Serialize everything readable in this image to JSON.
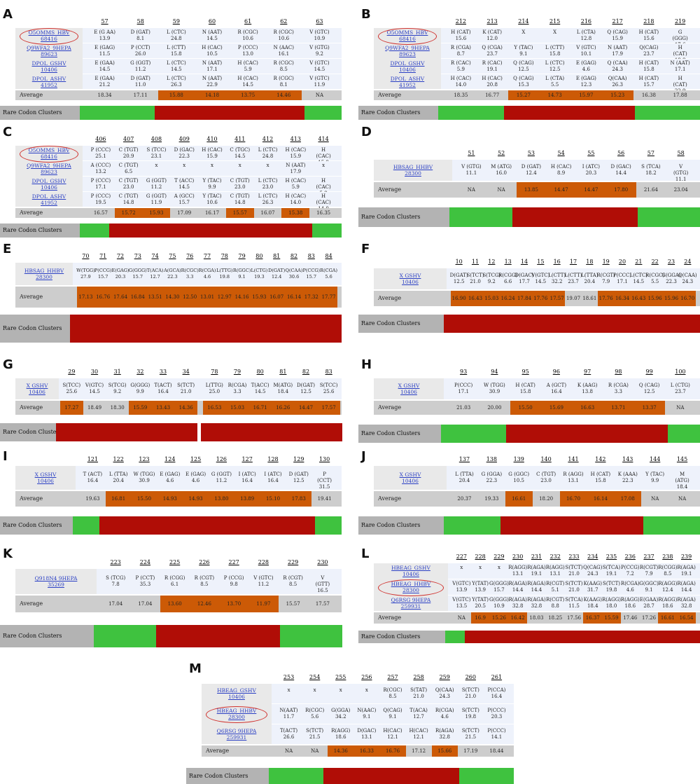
{
  "colors": {
    "green": "#3fc23f",
    "red": "#b00d06",
    "orange": "#cc5a06",
    "avg_grey": "#cdcdcd",
    "label_grey": "#b3b3b3",
    "band": "#eef2fb"
  },
  "avg_label": "Average",
  "clusters_label": "Rare Codon Clusters",
  "panels": [
    {
      "id": "A",
      "label": "A",
      "names": [
        "O5OMMS_HBV\n68416",
        "Q9WFA2_9HEPA\n89623",
        "DPOL_GSHV\n10406",
        "DPOL_ASHV\n41952"
      ],
      "circled": [
        0
      ],
      "positions": [
        "57",
        "58",
        "59",
        "60",
        "61",
        "62",
        "63"
      ],
      "rows": [
        [
          "E (G AA)\n13.9",
          "D (GAT)\n8.1",
          "L (CTC)\n24.8",
          "N (AAT)\n14.5",
          "R (CGC)\n10.6",
          "R (CGC)\n10.6",
          "V (GTC)\n10.9"
        ],
        [
          "E (GAG)\n11.5",
          "P (CCT)\n26.0",
          "L (CTT)\n15.8",
          "H (CAC)\n10.5",
          "P (CCC)\n13.0",
          "N (AAC)\n16.1",
          "V (GTG)\n9.2"
        ],
        [
          "E (GAA)\n14.5",
          "G (GGT)\n11.2",
          "L (CTC)\n14.5",
          "N (AAT)\n17.1",
          "H (CAC)\n5.9",
          "R (CGC)\n8.5",
          "V (GTC)\n14.5"
        ],
        [
          "E (GAA)\n21.2",
          "D (GAT)\n11.0",
          "L (CTC)\n26.3",
          "N (AAT)\n22.9",
          "H (CAC)\n14.5",
          "R (CGC)\n8.1",
          "V (GTC)\n11.9"
        ]
      ],
      "avg": [
        "18.34",
        "17.11",
        "15.88",
        "14.18",
        "13.75",
        "14.46",
        "NA"
      ],
      "hl": [
        2,
        3,
        4,
        5
      ],
      "clusters": [
        "g",
        "g",
        "r",
        "r",
        "r",
        "r",
        "g"
      ]
    },
    {
      "id": "B",
      "label": "B",
      "names": [
        "O5OMMS_HBV\n68416",
        "Q9WFA2_9HEPA\n89623",
        "DPOL_GSHV\n10406",
        "DPOL_ASHV\n41952"
      ],
      "circled": [
        0
      ],
      "positions": [
        "212",
        "213",
        "214",
        "215",
        "216",
        "217",
        "218",
        "219"
      ],
      "rows": [
        [
          "H (CAT)\n15.6",
          "K (CAT)\n12.0",
          "X",
          "X",
          "L (CTA)\n12.8",
          "Q (CAG)\n15.9",
          "H (CAT)\n15.6",
          "G (GGG)\n17.6"
        ],
        [
          "R (CGA)\n8.7",
          "Q (CGA)\n23.7",
          "Y (TAC)\n9.1",
          "L (CTT)\n15.8",
          "V (GTC)\n10.1",
          "N (AAT)\n17.9",
          "Q(CAG)\n23.7",
          "H (CAT)\n18.8"
        ],
        [
          "R (CAC)\n5.9",
          "R (CAC)\n19.1",
          "Q (CAG)\n12.5",
          "L (CTC)\n12.5",
          "E (GAG)\n4.6",
          "Q (CAA)\n24.3",
          "H (CAT)\n15.8",
          "N (AAT)\n17.1"
        ],
        [
          "H (CAC)\n14.0",
          "H (CAC)\n20.8",
          "Q (CAG)\n15.3",
          "L (CTA)\n5.5",
          "E (GAG)\n12.3",
          "Q(CAA)\n26.3",
          "H (CAT)\n15.7",
          "H (CAT)\n22.9"
        ]
      ],
      "avg": [
        "18.35",
        "16.77",
        "15.27",
        "14.73",
        "15.97",
        "15.23",
        "16.38",
        "17.88"
      ],
      "hl": [
        2,
        3,
        4,
        5
      ],
      "clusters": [
        "g",
        "g",
        "r",
        "r",
        "r",
        "r",
        "g",
        "g"
      ]
    },
    {
      "id": "C",
      "label": "C",
      "names": [
        "O5OMMS_HBV\n68416",
        "Q9WFA2_9HEPA\n89623",
        "DPOL_GSHV\n10406",
        "DPOL_ASHV\n41952"
      ],
      "circled": [
        0
      ],
      "positions": [
        "406",
        "407",
        "408",
        "409",
        "410",
        "411",
        "412",
        "413",
        "414"
      ],
      "rows": [
        [
          "P (CCC)\n25.1",
          "C (TGT)\n20.9",
          "S (TCC)\n23.1",
          "D (GAC)\n22.3",
          "H (CAC)\n15.9",
          "C (TGC)\n14.5",
          "L (CTC)\n24.8",
          "H (CAC)\n15.9",
          "H (CAC)\n15.9"
        ],
        [
          "A (CCC)\n13.2",
          "C (TGT)\n6.5",
          "x",
          "x",
          "x",
          "x",
          "x",
          "N (AAT)\n17.9",
          "x"
        ],
        [
          "P (CCC)\n17.1",
          "C (TGT)\n23.0",
          "G (GGT)\n11.2",
          "T (ACC)\n14.5",
          "Y (TAC)\n9.9",
          "C (TGT)\n23.0",
          "L (CTC)\n23.0",
          "H (CAC)\n5.9",
          "H (CAC)\n5.9"
        ],
        [
          "P (CCC)\n19.5",
          "C (TGT)\n14.8",
          "G (GGT)\n11.9",
          "A (GCC)\n15.7",
          "Y (TAC)\n10.6",
          "C (TGT)\n14.8",
          "L (CTC)\n26.3",
          "H (CAC)\n14.0",
          "H (CAC)\n14.0"
        ]
      ],
      "avg": [
        "16.57",
        "15.72",
        "15.93",
        "17.09",
        "16.17",
        "15.57",
        "16.07",
        "15.38",
        "16.35"
      ],
      "hl": [
        1,
        2,
        5,
        7
      ],
      "clusters": [
        "g",
        "r",
        "r",
        "r",
        "r",
        "r",
        "r",
        "r",
        "g"
      ]
    },
    {
      "id": "D",
      "label": "D",
      "names": [
        "HBSAG_HHBV\n28300"
      ],
      "circled": [],
      "positions": [
        "51",
        "52",
        "53",
        "54",
        "55",
        "56",
        "57",
        "58"
      ],
      "rows": [
        [
          "V (GTG)\n11.1",
          "M (ATG)\n16.0",
          "D (GAT)\n12.4",
          "H (CAC)\n8.9",
          "I (ATC)\n20.3",
          "D (GAC)\n14.4",
          "S (TCA)\n18.2",
          "V (GTG)\n11.1"
        ]
      ],
      "avg": [
        "NA",
        "NA",
        "13.85",
        "14.47",
        "14.47",
        "17.80",
        "21.64",
        "23.04"
      ],
      "hl": [
        2,
        3,
        4,
        5
      ],
      "clusters": [
        "g",
        "g",
        "r",
        "r",
        "r",
        "r",
        "g",
        "g"
      ]
    },
    {
      "id": "E",
      "label": "E",
      "names": [
        "HBSAG_HHBV\n28300"
      ],
      "circled": [],
      "positions": [
        "70",
        "71",
        "72",
        "73",
        "74",
        "75",
        "76",
        "77",
        "78",
        "79",
        "80",
        "81",
        "82",
        "83",
        "84"
      ],
      "rows": [
        [
          "W(TGG)\n27.9",
          "P(CCG)\n15.7",
          "E(GAG)\n20.3",
          "G(GGG)\n15.7",
          "T(ACA)\n12.7",
          "A(GCA)\n22.3",
          "R(CGC)\n3.3",
          "R(CGA)\n4.6",
          "L(TTG)\n19.8",
          "R(GGC)\n9.1",
          "L(CTG)\n19.3",
          "D(GAT)\n12.4",
          "Q(CAA)\n30.6",
          "P(CCG)\n15.7",
          "R(CGA)\n5.6"
        ]
      ],
      "avg": [
        "17.13",
        "16.76",
        "17.64",
        "16.84",
        "13.51",
        "14.30",
        "12.50",
        "13.01",
        "12.97",
        "14.16",
        "15.93",
        "16.07",
        "16.14",
        "17.32",
        "17.77"
      ],
      "hl": [
        0,
        1,
        2,
        3,
        4,
        5,
        6,
        7,
        8,
        9,
        10,
        11,
        12,
        13,
        14
      ],
      "clusters": [
        "r",
        "r",
        "r",
        "r",
        "r",
        "r",
        "r",
        "r",
        "r",
        "r",
        "r",
        "r",
        "r",
        "r",
        "r"
      ]
    },
    {
      "id": "F",
      "label": "F",
      "names": [
        "X GSHV\n10406"
      ],
      "circled": [],
      "positions": [
        "10",
        "11",
        "12",
        "13",
        "14",
        "15",
        "16",
        "17",
        "18",
        "19",
        "20",
        "21",
        "22",
        "23",
        "24"
      ],
      "rows": [
        [
          "D(GAT)\n12.5",
          "S(TCT)\n21.0",
          "S(TCG)\n9.2",
          "R(CGG)\n6.6",
          "D(GAC)\n17.7",
          "V(GTC)\n14.5",
          "L(CTT)\n32.2",
          "L(CTT)\n23.7",
          "L(TTA)\n20.4",
          "R(CGT)\n7.9",
          "P(CCC)\n17.1",
          "L(CTC)\n14.5",
          "R(CGC)\n5.5",
          "G(GGA)\n22.3",
          "Q(CAA)\n24.3"
        ]
      ],
      "avg": [
        "16.90",
        "16.43",
        "15.03",
        "16.24",
        "17.84",
        "17.76",
        "17.57",
        "19.07",
        "18.61",
        "17.76",
        "16.34",
        "16.43",
        "15.96",
        "15.96",
        "16.70"
      ],
      "hl": [
        0,
        1,
        2,
        3,
        4,
        5,
        6,
        9,
        10,
        11,
        12,
        13,
        14
      ],
      "clusters": [
        "r",
        "r",
        "r",
        "r",
        "r",
        "r",
        "r",
        "r",
        "r",
        "r",
        "r",
        "r",
        "r",
        "r",
        "r"
      ]
    },
    {
      "id": "G",
      "label": "G",
      "names": [
        "X GSHV\n10406"
      ],
      "circled": [],
      "split": 6,
      "positions": [
        "29",
        "30",
        "31",
        "32",
        "33",
        "34",
        "78",
        "79",
        "80",
        "81",
        "82",
        "83"
      ],
      "rows": [
        [
          "S(TCC)\n25.6",
          "V(GTC)\n14.5",
          "S(TCG)\n9.2",
          "G(GGG)\n9.9",
          "T(ACT)\n16.4",
          "S(TCT)\n21.0",
          "L(TTG)\n25.0",
          "R(CGA)\n3.3",
          "T(ACC)\n14.5",
          "M(ATG)\n18.4",
          "D(GAT)\n12.5",
          "S(TCC)\n25.6"
        ]
      ],
      "avg": [
        "17.27",
        "18.49",
        "18.30",
        "15.59",
        "13.43",
        "14.36",
        "16.53",
        "15.03",
        "16.71",
        "16.26",
        "14.47",
        "17.57"
      ],
      "hl": [
        0,
        3,
        4,
        5,
        6,
        7,
        8,
        9,
        10,
        11
      ],
      "clusters": [
        "r",
        "r",
        "r",
        "r",
        "r",
        "r",
        "r",
        "r",
        "r",
        "r",
        "r",
        "r"
      ]
    },
    {
      "id": "H",
      "label": "H",
      "names": [
        "X GSHV\n10406"
      ],
      "circled": [],
      "positions": [
        "93",
        "94",
        "95",
        "96",
        "97",
        "98",
        "99",
        "100"
      ],
      "rows": [
        [
          "P(CCC)\n17.1",
          "W (TGG)\n30.9",
          "H (CAT)\n15.8",
          "A (GCT)\n16.4",
          "K (AAG)\n13.8",
          "R (CGA)\n3.3",
          "Q (CAG)\n12.5",
          "L (CTG)\n23.7"
        ]
      ],
      "avg": [
        "21.03",
        "20.00",
        "15.50",
        "15.69",
        "16.63",
        "13.71",
        "13.37",
        "NA"
      ],
      "hl": [
        2,
        3,
        4,
        5,
        6
      ],
      "clusters": [
        "g",
        "g",
        "r",
        "r",
        "r",
        "r",
        "r",
        "g"
      ]
    },
    {
      "id": "I",
      "label": "I",
      "names": [
        "X GSHV\n10406"
      ],
      "circled": [],
      "positions": [
        "121",
        "122",
        "123",
        "124",
        "125",
        "126",
        "127",
        "128",
        "129",
        "130"
      ],
      "rows": [
        [
          "T (ACT)\n16.4",
          "L (TTA)\n20.4",
          "W (TGG)\n30.9",
          "E (GAG)\n4.6",
          "E (GAG)\n4.6",
          "G (GGT)\n11.2",
          "I (ATC)\n16.4",
          "I (ATC)\n16.4",
          "D (GAT)\n12.5",
          "P (CCT)\n31.5"
        ]
      ],
      "avg": [
        "19.63",
        "16.81",
        "15.50",
        "14.93",
        "14.93",
        "13.80",
        "13.89",
        "15.10",
        "17.83",
        "19.41"
      ],
      "hl": [
        1,
        2,
        3,
        4,
        5,
        6,
        7,
        8
      ],
      "clusters": [
        "g",
        "r",
        "r",
        "r",
        "r",
        "r",
        "r",
        "r",
        "r",
        "g"
      ]
    },
    {
      "id": "J",
      "label": "J",
      "names": [
        "X GSHV\n10406"
      ],
      "circled": [],
      "positions": [
        "137",
        "138",
        "139",
        "140",
        "141",
        "142",
        "143",
        "144",
        "145"
      ],
      "rows": [
        [
          "L (TTA)\n20.4",
          "G (GGA)\n22.3",
          "G (GGC)\n10.5",
          "C (TGT)\n23.0",
          "R (AGG)\n13.1",
          "H (CAT)\n15.8",
          "K (AAA)\n22.3",
          "Y (TAC)\n9.9",
          "M (ATG)\n18.4"
        ]
      ],
      "avg": [
        "20.37",
        "19.33",
        "16.61",
        "18.20",
        "16.70",
        "16.14",
        "17.08",
        "NA",
        "NA"
      ],
      "hl": [
        2,
        4,
        5,
        6
      ],
      "clusters": [
        "g",
        "g",
        "r",
        "r",
        "r",
        "r",
        "r",
        "g",
        "g"
      ]
    },
    {
      "id": "K",
      "label": "K",
      "names": [
        "Q918N4 9HEPA\n35269"
      ],
      "circled": [],
      "positions": [
        "223",
        "224",
        "225",
        "226",
        "227",
        "228",
        "229",
        "230"
      ],
      "rows": [
        [
          "S (TCG)\n7.8",
          "P (CCT)\n35.3",
          "R (CGG)\n6.1",
          "R (CGT)\n8.5",
          "P (CCG)\n9.8",
          "V (GTC)\n11.2",
          "R (CGT)\n8.5",
          "V (GTT)\n16.5"
        ]
      ],
      "avg": [
        "17.04",
        "17.04",
        "13.60",
        "12.46",
        "13.70",
        "11.97",
        "15.57",
        "17.57"
      ],
      "hl": [
        2,
        3,
        4,
        5
      ],
      "clusters": [
        "g",
        "g",
        "r",
        "r",
        "r",
        "r",
        "g",
        "g"
      ]
    },
    {
      "id": "L",
      "label": "L",
      "names": [
        "HBEAG_GSHV\n10406",
        "HBEAG_HHBV\n28300",
        "Q6RSG 9HEPA\n259931"
      ],
      "circled": [
        1
      ],
      "positions": [
        "227",
        "228",
        "229",
        "230",
        "231",
        "232",
        "233",
        "234",
        "235",
        "236",
        "237",
        "238",
        "239"
      ],
      "rows": [
        [
          "x",
          "x",
          "x",
          "R(AGG)\n13.1",
          "R(AGA)\n19.1",
          "R(AGG)\n13.1",
          "S(TCT)\n21.0",
          "Q(CAG)\n24.3",
          "S(TCA)\n19.1",
          "P(CCG)\n7.2",
          "R(CGT)\n7.9",
          "R(CGG)\n8.5",
          "R(AGA)\n19.1"
        ],
        [
          "V(GTC)\n13.9",
          "Y(TAT)\n13.9",
          "G(GGG)\n15.7",
          "R(AGA)\n14.4",
          "R(AGA)\n14.4",
          "R(CGT)\n5.1",
          "S(TCT)\n21.0",
          "K(AAG)\n31.7",
          "S(TCT)\n19.8",
          "R(CGA)\n4.6",
          "G(GGC)\n9.1",
          "R(AGG)\n12.4",
          "R(AGA)\n14.4"
        ],
        [
          "V(GTC)\n13.5",
          "Y(TAT)\n20.5",
          "G(GGG)\n10.9",
          "R(AGA)\n32.8",
          "R(AGA)\n32.8",
          "R(CGT)\n8.8",
          "S(TCA)\n11.5",
          "K(AAG)\n18.4",
          "R(AGG)\n18.0",
          "R(AGG)\n18.6",
          "E(GAA)\n28.7",
          "R(AGG)\n18.6",
          "R(AGA)\n32.8"
        ]
      ],
      "avg": [
        "NA",
        "16.9",
        "15.26",
        "16.42",
        "18.03",
        "18.25",
        "17.56",
        "16.37",
        "15.59",
        "17.46",
        "17.26",
        "16.61",
        "16.54"
      ],
      "hl": [
        1,
        2,
        3,
        7,
        8,
        11,
        12
      ],
      "clusters": [
        "g",
        "r",
        "r",
        "r",
        "r",
        "r",
        "r",
        "r",
        "r",
        "r",
        "r",
        "r",
        "r"
      ]
    },
    {
      "id": "M",
      "label": "M",
      "names": [
        "HBEAG_GSHV\n10406",
        "HBEAG_HHBV\n28300",
        "Q6RSG 9HEPA\n259931"
      ],
      "circled": [
        1
      ],
      "positions": [
        "253",
        "254",
        "255",
        "256",
        "257",
        "258",
        "259",
        "260",
        "261"
      ],
      "rows": [
        [
          "x",
          "x",
          "x",
          "x",
          "R(CGC)\n8.5",
          "S(TAT)\n21.0",
          "Q(CAA)\n24.3",
          "S(TCT)\n21.0",
          "P(CCA)\n16.4"
        ],
        [
          "N(AAT)\n11.7",
          "R(CGC)\n5.6",
          "G(GGA)\n34.2",
          "N(AAC)\n9.1",
          "Q(CAG)\n9.1",
          "T(ACA)\n12.7",
          "R(CGA)\n4.6",
          "S(TCT)\n19.8",
          "P(CCC)\n20.3"
        ],
        [
          "T(ACT)\n26.6",
          "S(TCT)\n21.5",
          "R(AGG)\n18.6",
          "D(GAC)\n13.1",
          "H(CAC)\n12.1",
          "H(CAC)\n12.1",
          "R(AGA)\n32.8",
          "S(TCT)\n21.5",
          "P(CCC)\n14.1"
        ]
      ],
      "avg": [
        "NA",
        "NA",
        "14.36",
        "16.33",
        "16.76",
        "17.12",
        "15.66",
        "17.19",
        "18.44"
      ],
      "hl": [
        2,
        3,
        4,
        6
      ],
      "clusters": [
        "g",
        "g",
        "r",
        "r",
        "r",
        "r",
        "r",
        "g",
        "g"
      ]
    }
  ]
}
